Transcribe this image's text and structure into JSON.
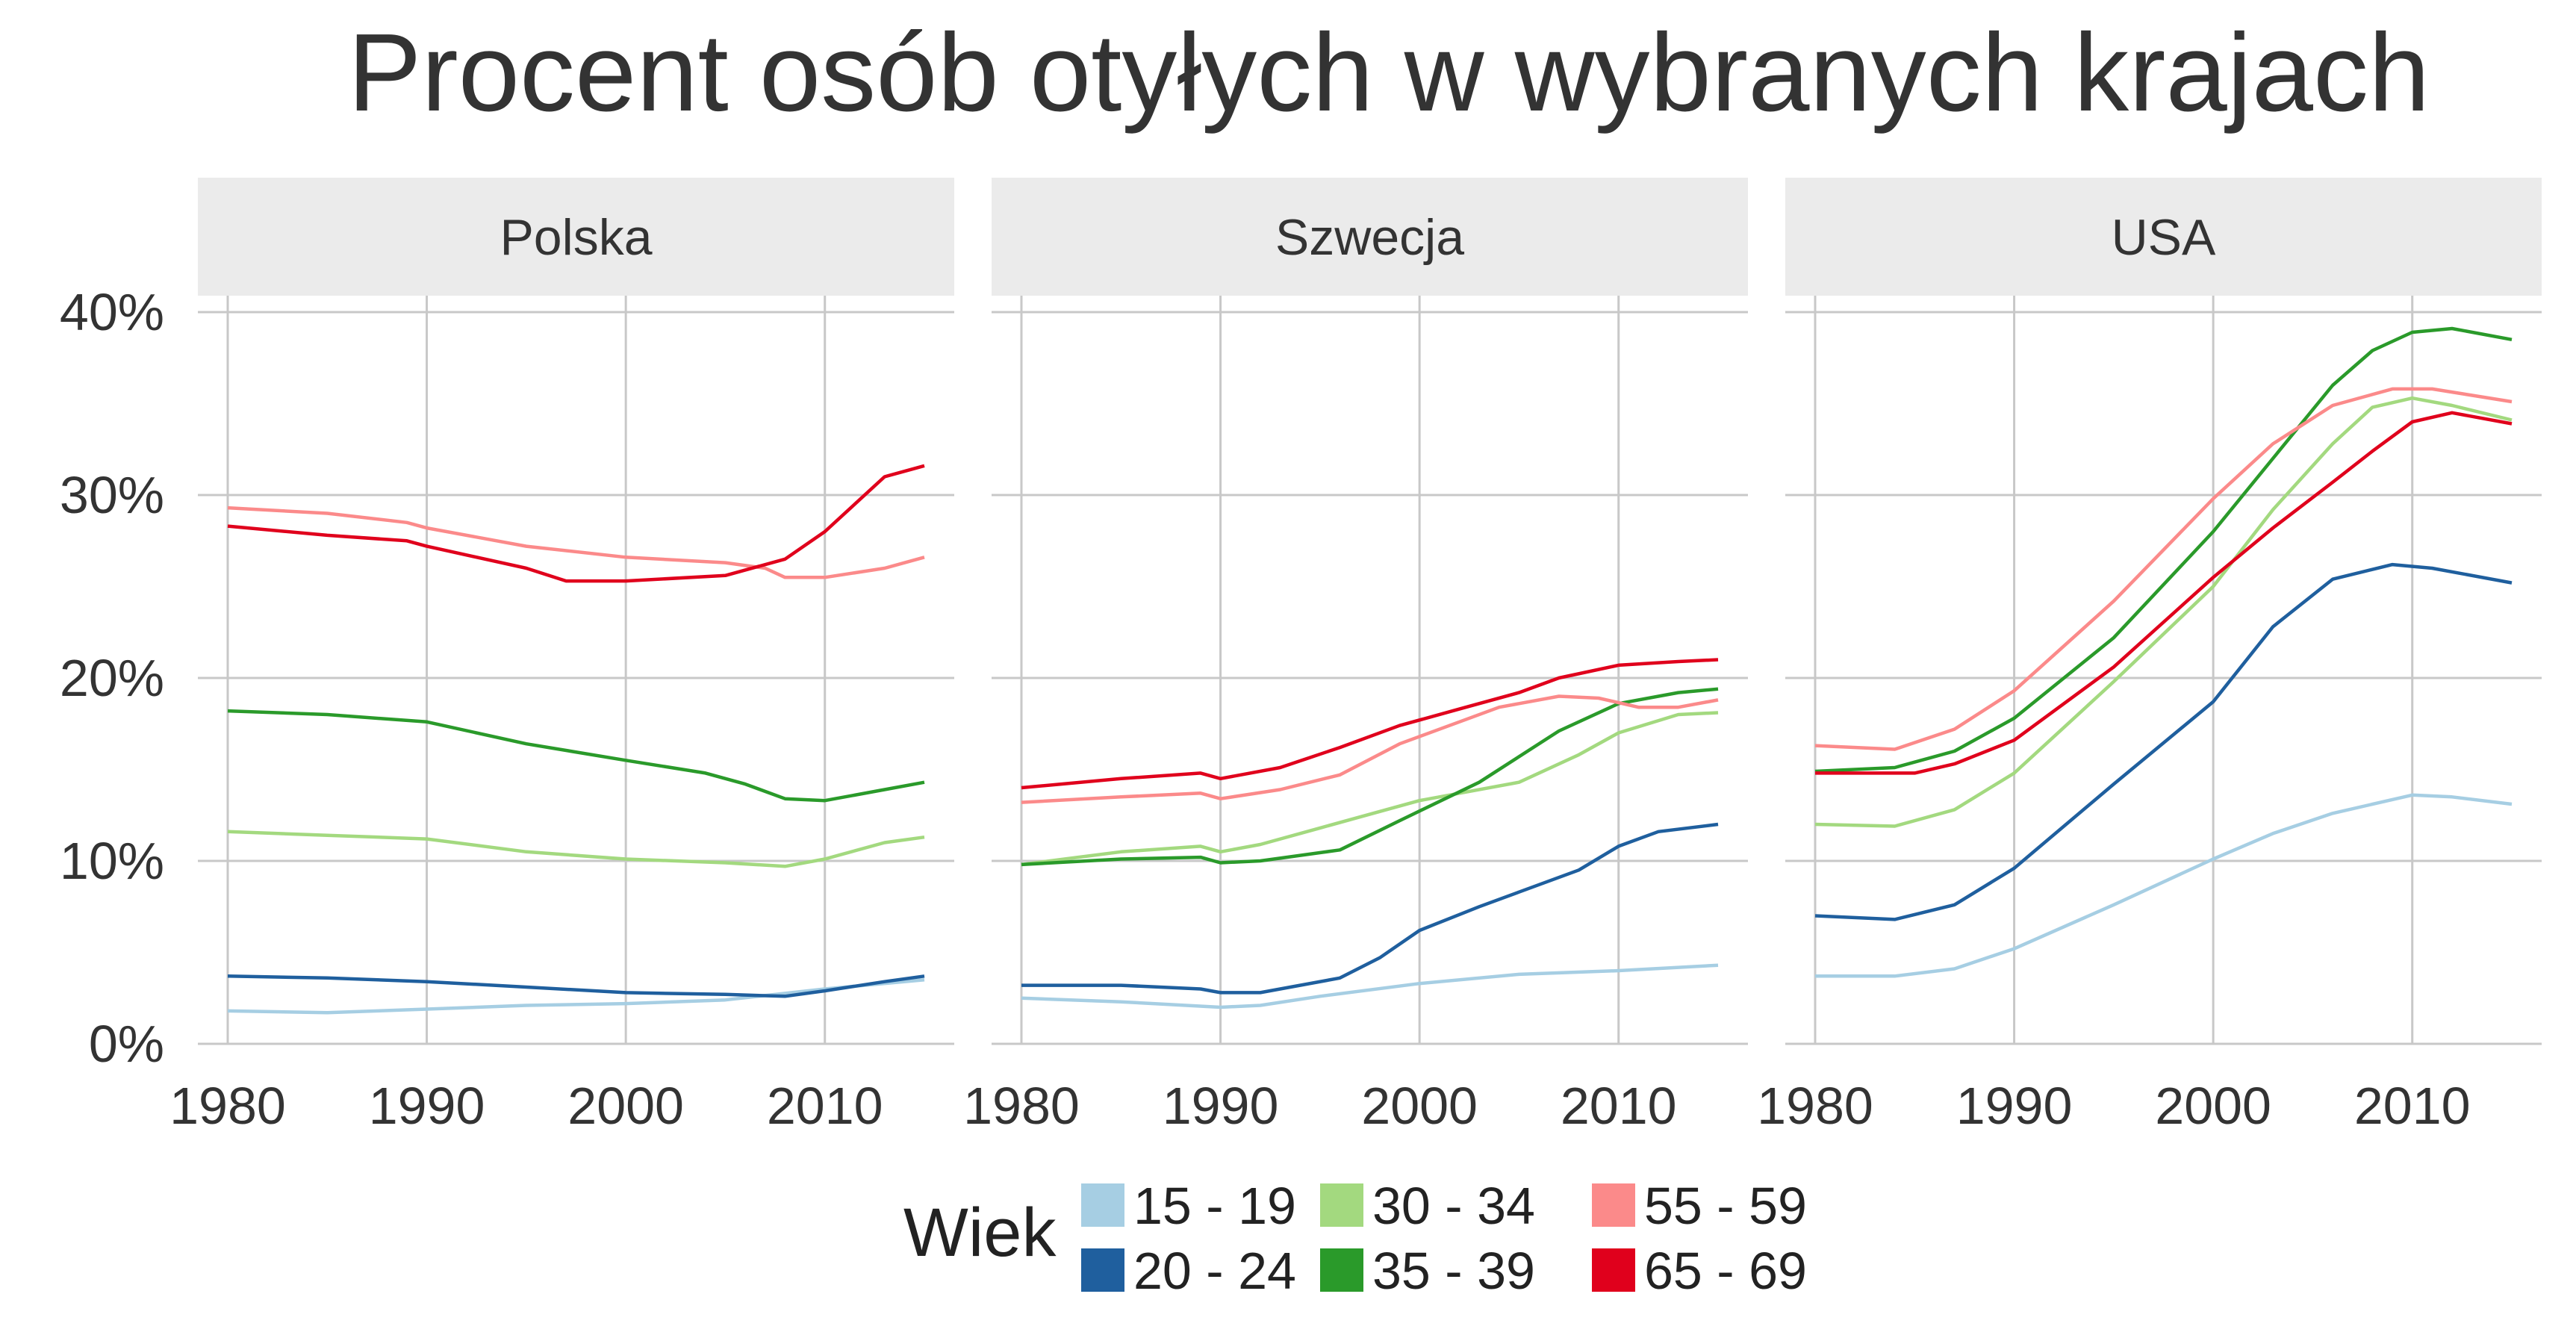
{
  "chart_data": {
    "type": "line",
    "title": "Procent osób otyłych w wybranych krajach",
    "facet_order": [
      "Polska",
      "Szwecja",
      "USA"
    ],
    "x_ticks": [
      1980,
      1990,
      2000,
      2010
    ],
    "xlim": [
      1978.5,
      2016.5
    ],
    "y_ticks": [
      0,
      10,
      20,
      30,
      40
    ],
    "y_tick_labels": [
      "0%",
      "10%",
      "20%",
      "30%",
      "40%"
    ],
    "ylim": [
      0,
      40
    ],
    "grid": true,
    "legend": {
      "position": "bottom",
      "title": "Wiek",
      "entries": [
        {
          "label": "15 - 19",
          "color": "#a6cee3"
        },
        {
          "label": "20 - 24",
          "color": "#1f5f9e"
        },
        {
          "label": "30 - 34",
          "color": "#a3d97f"
        },
        {
          "label": "35 - 39",
          "color": "#2a9a2a"
        },
        {
          "label": "55 - 59",
          "color": "#fb8a8a"
        },
        {
          "label": "65 - 69",
          "color": "#e0001c"
        }
      ]
    },
    "panels": [
      {
        "name": "Polska",
        "series": [
          {
            "name": "15 - 19",
            "color": "#a6cee3",
            "points": [
              [
                1980,
                1.8
              ],
              [
                1985,
                1.7
              ],
              [
                1990,
                1.9
              ],
              [
                1995,
                2.1
              ],
              [
                2000,
                2.2
              ],
              [
                2005,
                2.4
              ],
              [
                2010,
                3.0
              ],
              [
                2015,
                3.5
              ]
            ]
          },
          {
            "name": "20 - 24",
            "color": "#1f5f9e",
            "points": [
              [
                1980,
                3.7
              ],
              [
                1985,
                3.6
              ],
              [
                1990,
                3.4
              ],
              [
                1995,
                3.1
              ],
              [
                2000,
                2.8
              ],
              [
                2005,
                2.7
              ],
              [
                2008,
                2.6
              ],
              [
                2010,
                2.9
              ],
              [
                2013,
                3.4
              ],
              [
                2015,
                3.7
              ]
            ]
          },
          {
            "name": "30 - 34",
            "color": "#a3d97f",
            "points": [
              [
                1980,
                11.6
              ],
              [
                1985,
                11.4
              ],
              [
                1990,
                11.2
              ],
              [
                1995,
                10.5
              ],
              [
                2000,
                10.1
              ],
              [
                2005,
                9.9
              ],
              [
                2008,
                9.7
              ],
              [
                2010,
                10.1
              ],
              [
                2013,
                11.0
              ],
              [
                2015,
                11.3
              ]
            ]
          },
          {
            "name": "35 - 39",
            "color": "#2a9a2a",
            "points": [
              [
                1980,
                18.2
              ],
              [
                1985,
                18.0
              ],
              [
                1990,
                17.6
              ],
              [
                1995,
                16.4
              ],
              [
                2000,
                15.5
              ],
              [
                2004,
                14.8
              ],
              [
                2006,
                14.2
              ],
              [
                2008,
                13.4
              ],
              [
                2010,
                13.3
              ],
              [
                2013,
                13.9
              ],
              [
                2015,
                14.3
              ]
            ]
          },
          {
            "name": "55 - 59",
            "color": "#fb8a8a",
            "points": [
              [
                1980,
                29.3
              ],
              [
                1985,
                29.0
              ],
              [
                1989,
                28.5
              ],
              [
                1990,
                28.2
              ],
              [
                1995,
                27.2
              ],
              [
                2000,
                26.6
              ],
              [
                2005,
                26.3
              ],
              [
                2007,
                26.0
              ],
              [
                2008,
                25.5
              ],
              [
                2010,
                25.5
              ],
              [
                2013,
                26.0
              ],
              [
                2015,
                26.6
              ]
            ]
          },
          {
            "name": "65 - 69",
            "color": "#e0001c",
            "points": [
              [
                1980,
                28.3
              ],
              [
                1985,
                27.8
              ],
              [
                1989,
                27.5
              ],
              [
                1990,
                27.2
              ],
              [
                1995,
                26.0
              ],
              [
                1997,
                25.3
              ],
              [
                2000,
                25.3
              ],
              [
                2005,
                25.6
              ],
              [
                2008,
                26.5
              ],
              [
                2010,
                28.0
              ],
              [
                2013,
                31.0
              ],
              [
                2015,
                31.6
              ]
            ]
          }
        ]
      },
      {
        "name": "Szwecja",
        "series": [
          {
            "name": "15 - 19",
            "color": "#a6cee3",
            "points": [
              [
                1980,
                2.5
              ],
              [
                1985,
                2.3
              ],
              [
                1990,
                2.0
              ],
              [
                1992,
                2.1
              ],
              [
                1995,
                2.6
              ],
              [
                2000,
                3.3
              ],
              [
                2005,
                3.8
              ],
              [
                2010,
                4.0
              ],
              [
                2015,
                4.3
              ]
            ]
          },
          {
            "name": "20 - 24",
            "color": "#1f5f9e",
            "points": [
              [
                1980,
                3.2
              ],
              [
                1985,
                3.2
              ],
              [
                1989,
                3.0
              ],
              [
                1990,
                2.8
              ],
              [
                1992,
                2.8
              ],
              [
                1996,
                3.6
              ],
              [
                1998,
                4.7
              ],
              [
                2000,
                6.2
              ],
              [
                2003,
                7.5
              ],
              [
                2005,
                8.3
              ],
              [
                2008,
                9.5
              ],
              [
                2010,
                10.8
              ],
              [
                2012,
                11.6
              ],
              [
                2015,
                12.0
              ]
            ]
          },
          {
            "name": "30 - 34",
            "color": "#a3d97f",
            "points": [
              [
                1980,
                9.8
              ],
              [
                1985,
                10.5
              ],
              [
                1989,
                10.8
              ],
              [
                1990,
                10.5
              ],
              [
                1992,
                10.9
              ],
              [
                1995,
                11.8
              ],
              [
                1997,
                12.4
              ],
              [
                2000,
                13.3
              ],
              [
                2005,
                14.3
              ],
              [
                2008,
                15.8
              ],
              [
                2010,
                17.0
              ],
              [
                2013,
                18.0
              ],
              [
                2015,
                18.1
              ]
            ]
          },
          {
            "name": "35 - 39",
            "color": "#2a9a2a",
            "points": [
              [
                1980,
                9.8
              ],
              [
                1985,
                10.1
              ],
              [
                1989,
                10.2
              ],
              [
                1990,
                9.9
              ],
              [
                1992,
                10.0
              ],
              [
                1996,
                10.6
              ],
              [
                1999,
                12.2
              ],
              [
                2003,
                14.3
              ],
              [
                2007,
                17.1
              ],
              [
                2010,
                18.6
              ],
              [
                2013,
                19.2
              ],
              [
                2015,
                19.4
              ]
            ]
          },
          {
            "name": "55 - 59",
            "color": "#fb8a8a",
            "points": [
              [
                1980,
                13.2
              ],
              [
                1985,
                13.5
              ],
              [
                1989,
                13.7
              ],
              [
                1990,
                13.4
              ],
              [
                1993,
                13.9
              ],
              [
                1996,
                14.7
              ],
              [
                1999,
                16.4
              ],
              [
                2002,
                17.6
              ],
              [
                2004,
                18.4
              ],
              [
                2007,
                19.0
              ],
              [
                2009,
                18.9
              ],
              [
                2011,
                18.4
              ],
              [
                2013,
                18.4
              ],
              [
                2015,
                18.8
              ]
            ]
          },
          {
            "name": "65 - 69",
            "color": "#e0001c",
            "points": [
              [
                1980,
                14.0
              ],
              [
                1985,
                14.5
              ],
              [
                1989,
                14.8
              ],
              [
                1990,
                14.5
              ],
              [
                1993,
                15.1
              ],
              [
                1996,
                16.2
              ],
              [
                1999,
                17.4
              ],
              [
                2002,
                18.3
              ],
              [
                2005,
                19.2
              ],
              [
                2007,
                20.0
              ],
              [
                2010,
                20.7
              ],
              [
                2013,
                20.9
              ],
              [
                2015,
                21.0
              ]
            ]
          }
        ]
      },
      {
        "name": "USA",
        "series": [
          {
            "name": "15 - 19",
            "color": "#a6cee3",
            "points": [
              [
                1980,
                3.7
              ],
              [
                1984,
                3.7
              ],
              [
                1987,
                4.1
              ],
              [
                1990,
                5.2
              ],
              [
                1995,
                7.6
              ],
              [
                2000,
                10.1
              ],
              [
                2003,
                11.5
              ],
              [
                2006,
                12.6
              ],
              [
                2010,
                13.6
              ],
              [
                2012,
                13.5
              ],
              [
                2015,
                13.1
              ]
            ]
          },
          {
            "name": "20 - 24",
            "color": "#1f5f9e",
            "points": [
              [
                1980,
                7.0
              ],
              [
                1984,
                6.8
              ],
              [
                1987,
                7.6
              ],
              [
                1990,
                9.6
              ],
              [
                1995,
                14.2
              ],
              [
                2000,
                18.7
              ],
              [
                2003,
                22.8
              ],
              [
                2006,
                25.4
              ],
              [
                2009,
                26.2
              ],
              [
                2011,
                26.0
              ],
              [
                2015,
                25.2
              ]
            ]
          },
          {
            "name": "30 - 34",
            "color": "#a3d97f",
            "points": [
              [
                1980,
                12.0
              ],
              [
                1984,
                11.9
              ],
              [
                1987,
                12.8
              ],
              [
                1990,
                14.8
              ],
              [
                1995,
                19.8
              ],
              [
                2000,
                25.0
              ],
              [
                2003,
                29.2
              ],
              [
                2006,
                32.8
              ],
              [
                2008,
                34.8
              ],
              [
                2010,
                35.3
              ],
              [
                2012,
                34.9
              ],
              [
                2015,
                34.1
              ]
            ]
          },
          {
            "name": "35 - 39",
            "color": "#2a9a2a",
            "points": [
              [
                1980,
                14.9
              ],
              [
                1984,
                15.1
              ],
              [
                1987,
                16.0
              ],
              [
                1990,
                17.8
              ],
              [
                1995,
                22.2
              ],
              [
                2000,
                28.0
              ],
              [
                2003,
                32.0
              ],
              [
                2006,
                36.0
              ],
              [
                2008,
                37.9
              ],
              [
                2010,
                38.9
              ],
              [
                2012,
                39.1
              ],
              [
                2015,
                38.5
              ]
            ]
          },
          {
            "name": "55 - 59",
            "color": "#fb8a8a",
            "points": [
              [
                1980,
                16.3
              ],
              [
                1984,
                16.1
              ],
              [
                1987,
                17.2
              ],
              [
                1990,
                19.3
              ],
              [
                1995,
                24.2
              ],
              [
                2000,
                29.8
              ],
              [
                2003,
                32.8
              ],
              [
                2006,
                34.9
              ],
              [
                2009,
                35.8
              ],
              [
                2011,
                35.8
              ],
              [
                2015,
                35.1
              ]
            ]
          },
          {
            "name": "65 - 69",
            "color": "#e0001c",
            "points": [
              [
                1980,
                14.8
              ],
              [
                1985,
                14.8
              ],
              [
                1987,
                15.3
              ],
              [
                1990,
                16.6
              ],
              [
                1995,
                20.6
              ],
              [
                2000,
                25.5
              ],
              [
                2003,
                28.2
              ],
              [
                2006,
                30.7
              ],
              [
                2008,
                32.4
              ],
              [
                2010,
                34.0
              ],
              [
                2012,
                34.5
              ],
              [
                2015,
                33.9
              ]
            ]
          }
        ]
      }
    ]
  }
}
